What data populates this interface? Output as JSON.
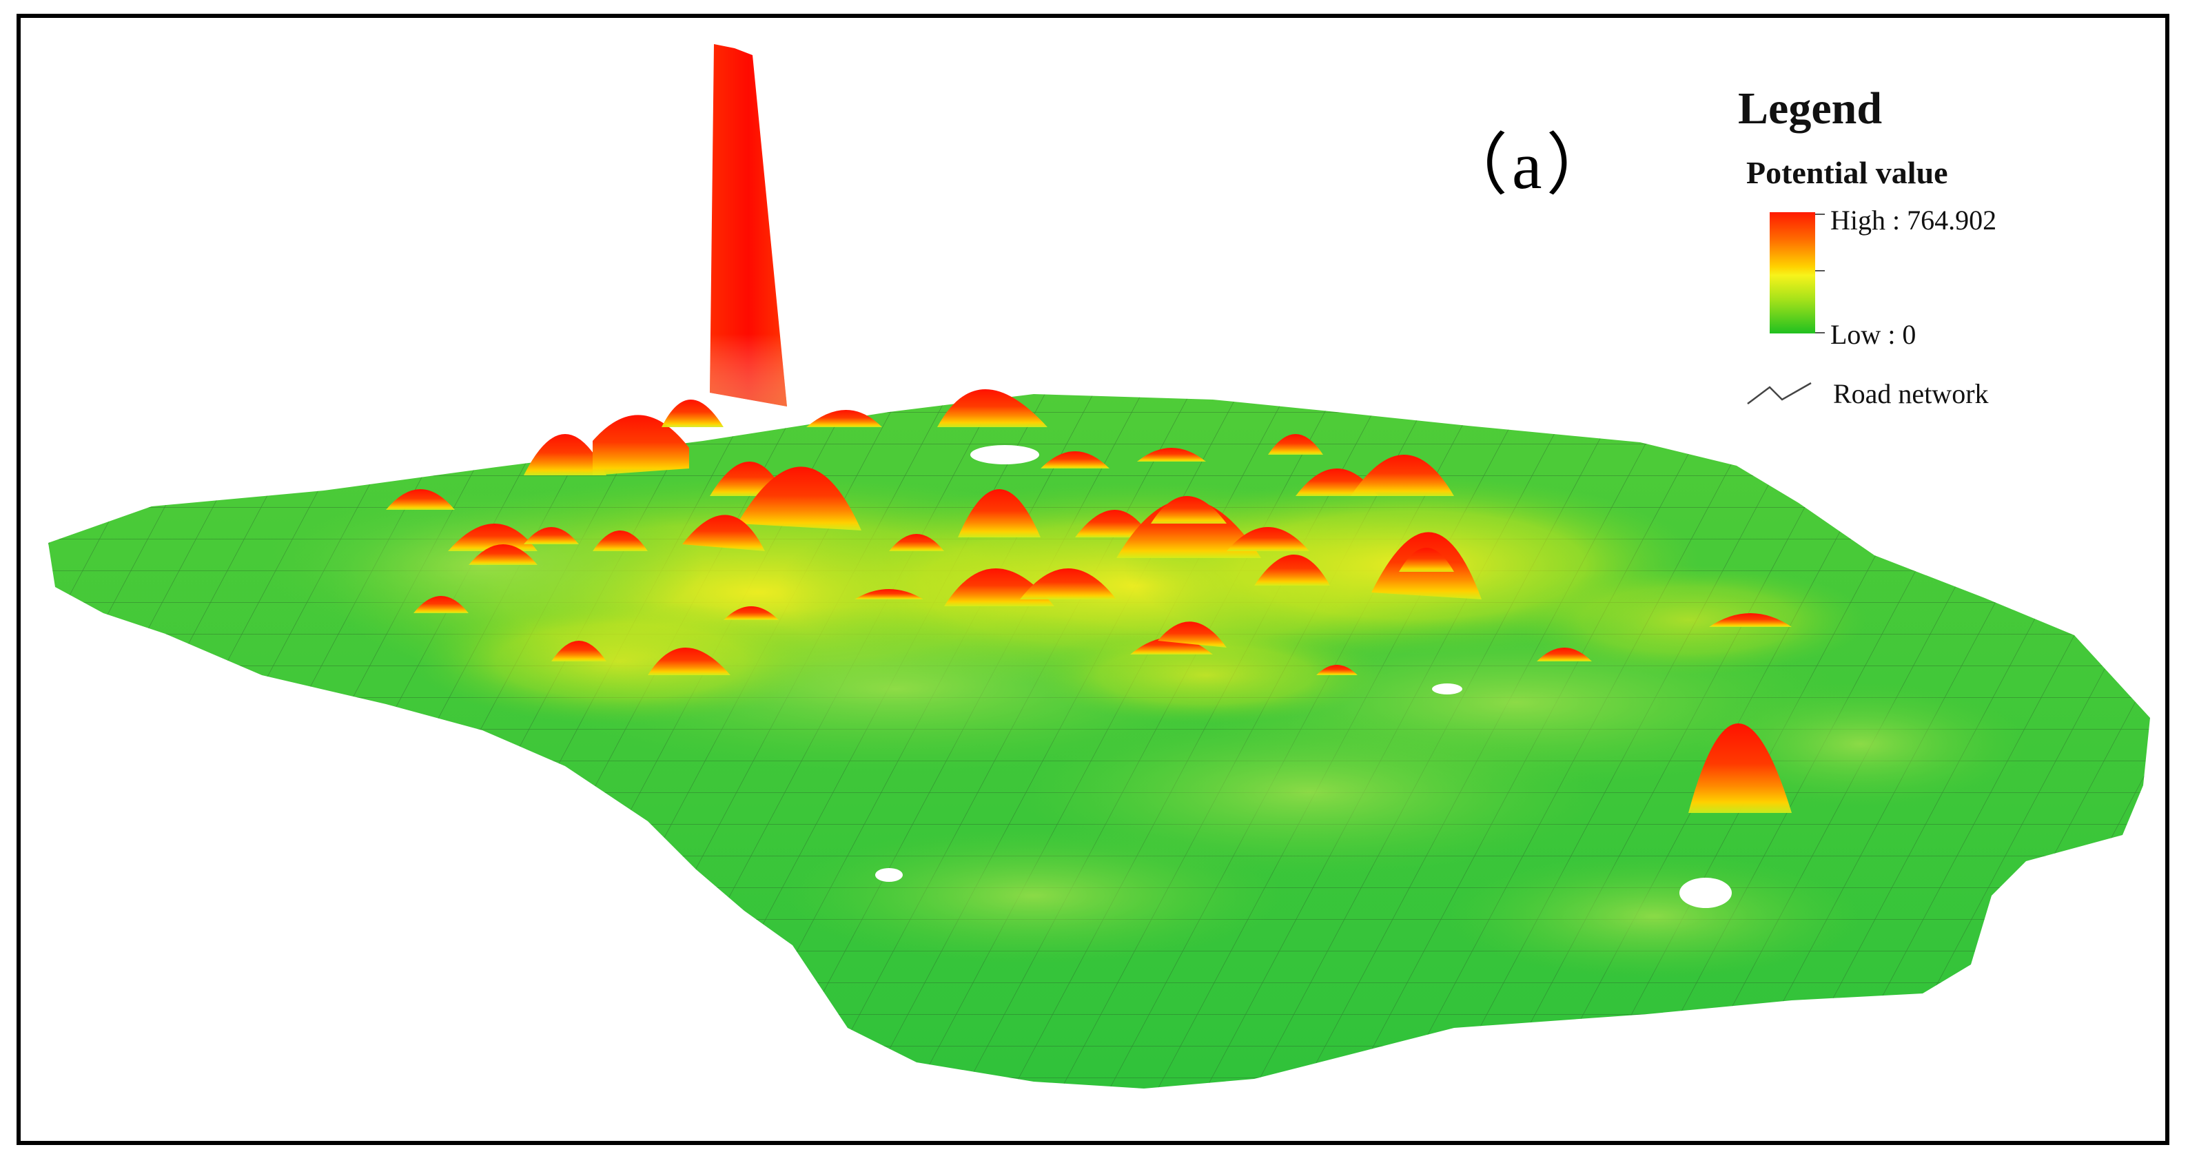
{
  "panel_label": "（a）",
  "legend": {
    "title": "Legend",
    "subtitle": "Potential value",
    "high_label": "High : 764.902",
    "low_label": "Low : 0",
    "road_label": "Road network",
    "ramp_colors": [
      "#ff1a00",
      "#ff6a00",
      "#ffd200",
      "#f7f31b",
      "#a6e21a",
      "#20c020"
    ],
    "high_value": 764.902,
    "low_value": 0
  },
  "map": {
    "base_color": "#3cc93c",
    "road_color": "#2f5f2f",
    "peak_colors": [
      "#ff1500",
      "#ff5a00",
      "#ffb300",
      "#f5ef22"
    ]
  }
}
